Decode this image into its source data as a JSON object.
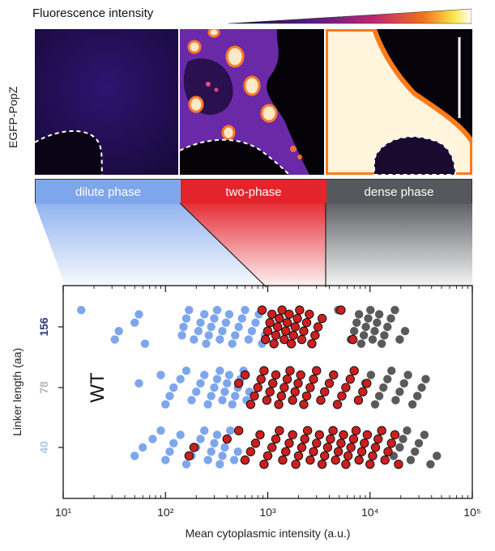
{
  "figure": {
    "colorbar_title": "Fluorescence intensity",
    "channel_label": "EGFP-PopZ",
    "panels": [
      "dilute",
      "two-phase",
      "dense"
    ],
    "phases": [
      {
        "label": "dilute phase",
        "color": "#7ea6ec"
      },
      {
        "label": "two-phase",
        "color": "#e3242b"
      },
      {
        "label": "dense phase",
        "color": "#55585c"
      }
    ],
    "colors": {
      "dilute": "#7ea6ec",
      "two_phase": "#cc1f1f",
      "dense": "#5a5a5a"
    }
  },
  "chart_data": {
    "type": "scatter",
    "title": "",
    "xlabel": "Mean cytoplasmic intensity (a.u.)",
    "ylabel": "Linker length (aa)",
    "xscale": "log",
    "xlim": [
      10,
      100000
    ],
    "xticks": [
      "10¹",
      "10²",
      "10³",
      "10⁴",
      "10⁵"
    ],
    "categories": [
      "156",
      "78",
      "40"
    ],
    "category_colors": [
      "#2b3a78",
      "#b8b8b8",
      "#a9c7ec"
    ],
    "annotation": "WT",
    "grid": false,
    "series": [
      {
        "category": "156",
        "phase": "dilute",
        "x": [
          15,
          32,
          35,
          50,
          55,
          63,
          145,
          150,
          160,
          170,
          190,
          210,
          220,
          240,
          250,
          265,
          280,
          300,
          320,
          340,
          360,
          390,
          420,
          450,
          480,
          520,
          560,
          600,
          650,
          700,
          760,
          820,
          880,
          940
        ]
      },
      {
        "category": "156",
        "phase": "two-phase",
        "x": [
          880,
          950,
          1000,
          1050,
          1100,
          1150,
          1200,
          1250,
          1300,
          1380,
          1450,
          1500,
          1550,
          1620,
          1700,
          1780,
          1850,
          1950,
          2050,
          2150,
          2250,
          2400,
          2550,
          2700,
          2900,
          3100,
          3400,
          5200,
          6800
        ]
      },
      {
        "category": "156",
        "phase": "dense",
        "x": [
          4900,
          6500,
          7000,
          7400,
          7800,
          8200,
          8700,
          9100,
          9600,
          10100,
          10600,
          11100,
          11700,
          12300,
          13000,
          13800,
          14800,
          16000,
          17500,
          19500,
          22000
        ]
      },
      {
        "category": "78",
        "phase": "dilute",
        "x": [
          55,
          90,
          100,
          110,
          120,
          140,
          160,
          180,
          200,
          220,
          240,
          260,
          280,
          300,
          320,
          340,
          360,
          380,
          400,
          420,
          450,
          480,
          510,
          540,
          580,
          620,
          660
        ]
      },
      {
        "category": "78",
        "phase": "two-phase",
        "x": [
          520,
          600,
          680,
          740,
          800,
          860,
          920,
          980,
          1050,
          1120,
          1200,
          1280,
          1360,
          1450,
          1550,
          1650,
          1750,
          1850,
          1980,
          2100,
          2250,
          2400,
          2600,
          2800,
          3000,
          3300,
          3600,
          4000,
          4400,
          4800,
          5300,
          5800,
          6400,
          7000,
          7700,
          8500,
          9300
        ]
      },
      {
        "category": "78",
        "phase": "dense",
        "x": [
          9000,
          10200,
          11200,
          12300,
          13500,
          14800,
          16200,
          17800,
          19500,
          21500,
          23500,
          26000,
          29000,
          32000,
          35000
        ]
      },
      {
        "category": "40",
        "phase": "dilute",
        "x": [
          50,
          60,
          75,
          90,
          100,
          110,
          120,
          140,
          160,
          180,
          200,
          220,
          240,
          260,
          280,
          300,
          320,
          340,
          360,
          380,
          400,
          430,
          470,
          510
        ]
      },
      {
        "category": "40",
        "phase": "two-phase",
        "x": [
          170,
          190,
          400,
          520,
          600,
          680,
          760,
          840,
          920,
          1000,
          1100,
          1200,
          1300,
          1400,
          1500,
          1620,
          1750,
          1880,
          2000,
          2150,
          2300,
          2450,
          2600,
          2800,
          3000,
          3200,
          3400,
          3600,
          3850,
          4100,
          4350,
          4600,
          4900,
          5200,
          5500,
          5800,
          6100,
          6500,
          6900,
          7300,
          7800,
          8300,
          8800,
          9400,
          10000,
          10600,
          11300,
          12000,
          13000,
          14000,
          15000,
          16200,
          17500,
          19000
        ]
      },
      {
        "category": "40",
        "phase": "dense",
        "x": [
          17000,
          19500,
          21000,
          23000,
          25000,
          27500,
          30000,
          34000,
          39000,
          45000
        ]
      }
    ]
  }
}
